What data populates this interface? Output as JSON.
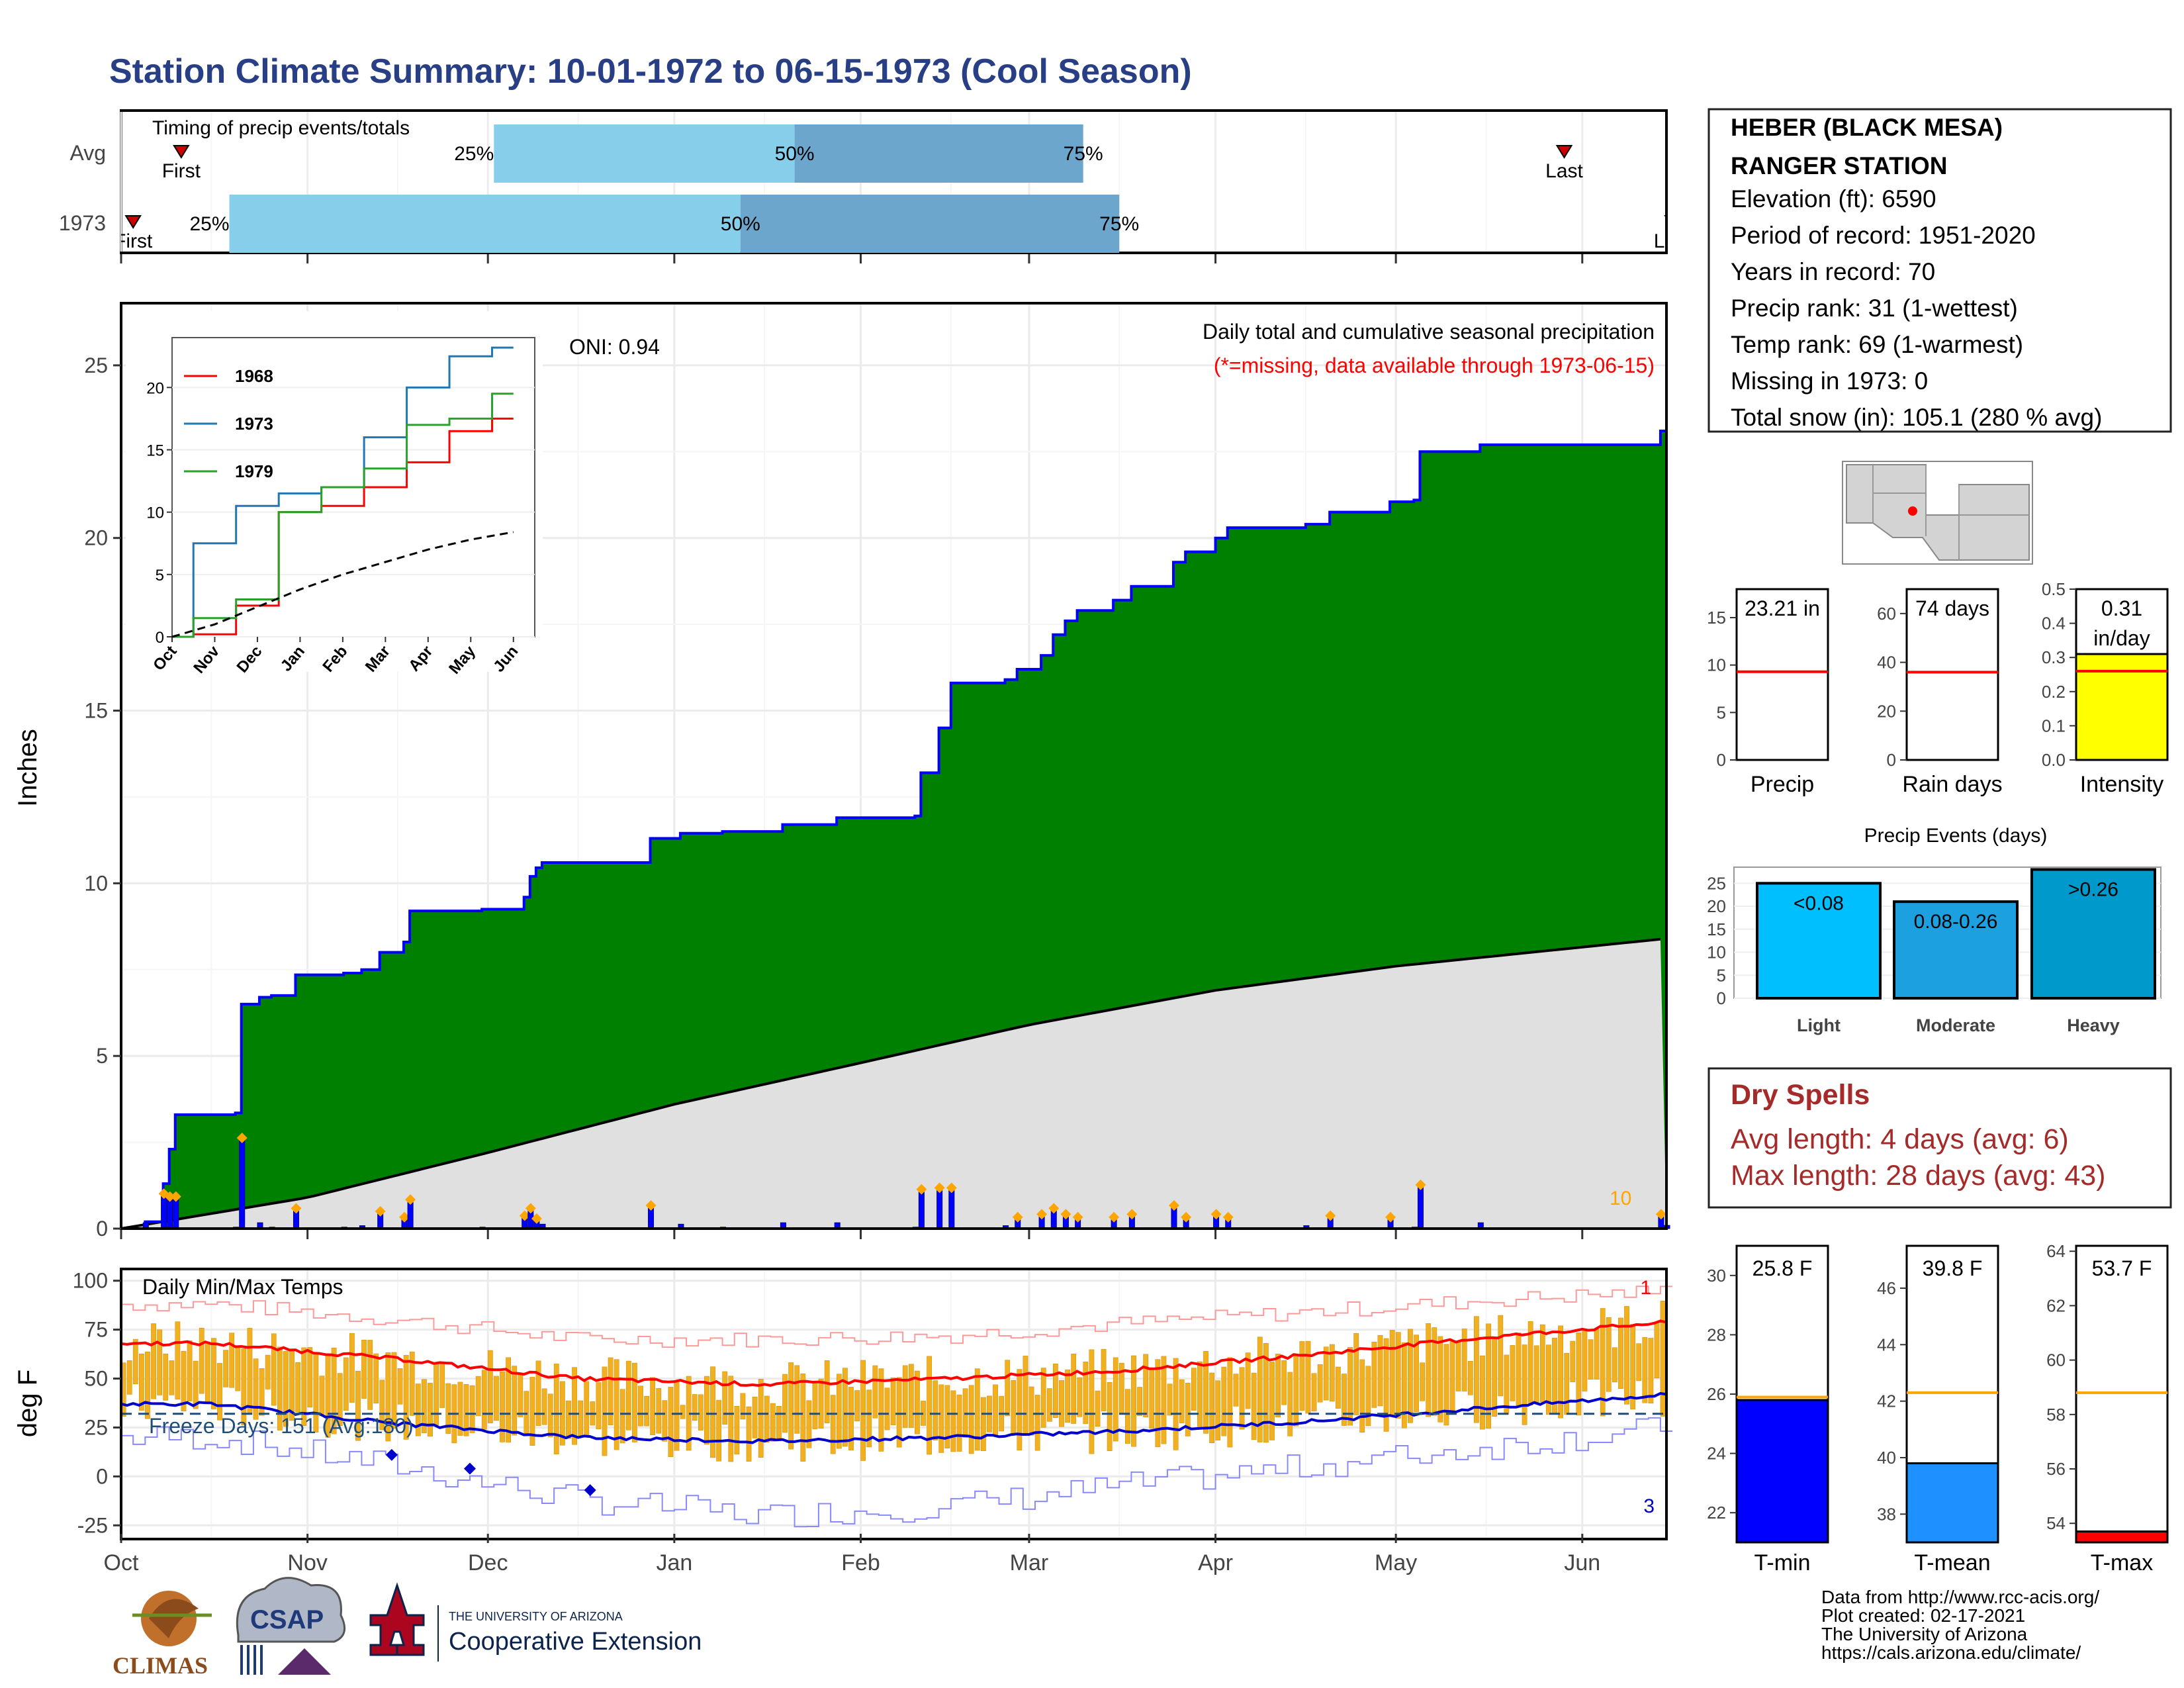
{
  "title": "Station Climate Summary: 10-01-1972 to 06-15-1973 (Cool Season)",
  "colors": {
    "title": "#283f86",
    "precip_fill": "#008000",
    "precip_line": "#0000ff",
    "normal_fill": "#e0e0e0",
    "timing_light": "#87ceeb",
    "timing_dark": "#6ca6cd",
    "temp_bar": "#f0b020",
    "max_line": "#ff0000",
    "min_line": "#0000cc",
    "dry_text": "#a52a2a"
  },
  "timing": {
    "title": "Timing of precip events/totals",
    "rows": [
      {
        "label": "Avg",
        "first_day": 10,
        "last_day": 240,
        "first": "First",
        "last": "Last",
        "q25": 62,
        "q50": 112,
        "q75": 160,
        "q25_label": "25%",
        "q50_label": "50%",
        "q75_label": "75%"
      },
      {
        "label": "1973",
        "first_day": 2,
        "last_day": 258,
        "first": "First",
        "last": "Last",
        "q25": 18,
        "q50": 103,
        "q75": 166,
        "q25_label": "25%",
        "q50_label": "50%",
        "q75_label": "75%"
      }
    ]
  },
  "station": {
    "lines": [
      "HEBER (BLACK MESA)",
      "RANGER STATION",
      "Elevation (ft): 6590",
      "Period of record: 1951-2020",
      "Years in record: 70",
      "Precip rank: 31 (1-wettest)",
      "Temp rank: 69 (1-warmest)",
      "Missing in 1973: 0",
      "Total snow (in): 105.1 (280 % avg)"
    ]
  },
  "precip_panel": {
    "label": "Daily total and cumulative seasonal precipitation",
    "missing_note": "(*=missing, data available through 1973-06-15)",
    "oni": "ONI: 0.94",
    "ylabel": "Inches",
    "yticks": [
      "0",
      "5",
      "10",
      "15",
      "20",
      "25"
    ],
    "corner_count": "10"
  },
  "inset": {
    "yticks": [
      "0",
      "5",
      "10",
      "15",
      "20"
    ],
    "xticks": [
      "Oct",
      "Nov",
      "Dec",
      "Jan",
      "Feb",
      "Mar",
      "Apr",
      "May",
      "Jun"
    ],
    "legend": [
      "1968",
      "1973",
      "1979"
    ]
  },
  "temp_panel": {
    "label": "Daily Min/Max Temps",
    "freeze": "Freeze Days: 151 (Avg:180)",
    "ylabel": "deg F",
    "yticks": [
      "100",
      "75",
      "50",
      "25",
      "0",
      "-25"
    ],
    "corner_top": "1",
    "corner_bottom": "3"
  },
  "months": [
    "Oct",
    "Nov",
    "Dec",
    "Jan",
    "Feb",
    "Mar",
    "Apr",
    "May",
    "Jun"
  ],
  "small_bars": [
    {
      "title": "23.21 in",
      "label": "Precip",
      "value": 23.21,
      "avg": 9.3,
      "ymax": 18,
      "ticks": [
        "0",
        "5",
        "10",
        "15"
      ],
      "fill": "#ffffff"
    },
    {
      "title": "74 days",
      "label": "Rain days",
      "value": 74,
      "avg": 36,
      "ymax": 70,
      "ticks": [
        "0",
        "20",
        "40",
        "60"
      ],
      "fill": "#ffffff"
    },
    {
      "title": "0.31 in/day",
      "label": "Intensity",
      "value": 0.31,
      "avg": 0.26,
      "ymax": 0.5,
      "ticks": [
        "0.0",
        "0.1",
        "0.2",
        "0.3",
        "0.4",
        "0.5"
      ],
      "fill": "#ffff00"
    }
  ],
  "events": {
    "title": "Precip Events (days)",
    "ticks": [
      "0",
      "5",
      "10",
      "15",
      "20",
      "25"
    ],
    "bars": [
      {
        "label": "<0.08",
        "category": "Light",
        "value": 25,
        "color": "#00bfff"
      },
      {
        "label": "0.08-0.26",
        "category": "Moderate",
        "value": 21,
        "color": "#1ca0e0"
      },
      {
        "label": ">0.26",
        "category": "Heavy",
        "value": 28,
        "color": "#0099cc"
      }
    ]
  },
  "dry_spells": {
    "title": "Dry Spells",
    "avg": "Avg length: 4 days (avg: 6)",
    "max": "Max length: 28 days (avg: 43)"
  },
  "temp_bars": [
    {
      "title": "25.8 F",
      "label": "T-min",
      "value": 25.8,
      "avg": 25.9,
      "ymin": 21,
      "ymax": 31,
      "ticks": [
        "22",
        "24",
        "26",
        "28",
        "30"
      ],
      "fill": "#0000ff"
    },
    {
      "title": "39.8 F",
      "label": "T-mean",
      "value": 39.8,
      "avg": 42.3,
      "ymin": 37,
      "ymax": 47.5,
      "ticks": [
        "38",
        "40",
        "42",
        "44",
        "46"
      ],
      "fill": "#1e90ff"
    },
    {
      "title": "53.7 F",
      "label": "T-max",
      "value": 53.7,
      "avg": 58.8,
      "ymin": 53.3,
      "ymax": 64.2,
      "ticks": [
        "54",
        "56",
        "58",
        "60",
        "62",
        "64"
      ],
      "fill": "#ff0000"
    }
  ],
  "footer": {
    "lines": [
      "Data from http://www.rcc-acis.org/",
      "Plot created: 02-17-2021",
      "The University of Arizona",
      "https://cals.arizona.edu/climate/"
    ]
  },
  "logos": {
    "climas": "CLIMAS",
    "csap": "CSAP",
    "ua_top": "THE UNIVERSITY OF ARIZONA",
    "ua_bottom": "Cooperative Extension"
  },
  "chart_data": [
    {
      "type": "area",
      "title": "Daily total and cumulative seasonal precipitation",
      "ylabel": "Inches",
      "ylim": [
        0,
        25
      ],
      "x_range": [
        "1972-10-01",
        "1973-06-15"
      ],
      "series": [
        {
          "name": "cumulative",
          "points": [
            [
              "1972-10-01",
              0.0
            ],
            [
              "1972-10-05",
              0.2
            ],
            [
              "1972-10-08",
              1.3
            ],
            [
              "1972-10-09",
              2.3
            ],
            [
              "1972-10-10",
              3.3
            ],
            [
              "1972-10-20",
              3.35
            ],
            [
              "1972-10-21",
              6.5
            ],
            [
              "1972-10-24",
              6.7
            ],
            [
              "1972-10-26",
              6.75
            ],
            [
              "1972-10-30",
              7.35
            ],
            [
              "1972-11-07",
              7.4
            ],
            [
              "1972-11-10",
              7.5
            ],
            [
              "1972-11-13",
              8.0
            ],
            [
              "1972-11-17",
              8.3
            ],
            [
              "1972-11-18",
              9.2
            ],
            [
              "1972-11-30",
              9.25
            ],
            [
              "1972-12-07",
              9.6
            ],
            [
              "1972-12-08",
              10.2
            ],
            [
              "1972-12-09",
              10.45
            ],
            [
              "1972-12-10",
              10.6
            ],
            [
              "1972-12-27",
              10.6
            ],
            [
              "1972-12-28",
              11.3
            ],
            [
              "1973-01-02",
              11.45
            ],
            [
              "1973-01-09",
              11.5
            ],
            [
              "1973-01-19",
              11.7
            ],
            [
              "1973-01-28",
              11.9
            ],
            [
              "1973-02-10",
              11.95
            ],
            [
              "1973-02-11",
              13.2
            ],
            [
              "1973-02-14",
              14.5
            ],
            [
              "1973-02-16",
              15.8
            ],
            [
              "1973-02-25",
              15.9
            ],
            [
              "1973-02-27",
              16.2
            ],
            [
              "1973-03-03",
              16.6
            ],
            [
              "1973-03-05",
              17.2
            ],
            [
              "1973-03-07",
              17.6
            ],
            [
              "1973-03-09",
              17.9
            ],
            [
              "1973-03-15",
              18.2
            ],
            [
              "1973-03-18",
              18.6
            ],
            [
              "1973-03-25",
              19.3
            ],
            [
              "1973-03-27",
              19.6
            ],
            [
              "1973-04-01",
              20.0
            ],
            [
              "1973-04-03",
              20.3
            ],
            [
              "1973-04-16",
              20.4
            ],
            [
              "1973-04-20",
              20.75
            ],
            [
              "1973-04-30",
              21.05
            ],
            [
              "1973-05-04",
              21.1
            ],
            [
              "1973-05-05",
              22.5
            ],
            [
              "1973-05-15",
              22.7
            ],
            [
              "1973-06-13",
              22.7
            ],
            [
              "1973-06-14",
              23.1
            ],
            [
              "1973-06-15",
              23.21
            ]
          ]
        },
        {
          "name": "average cumulative",
          "points": [
            [
              "1972-10-01",
              0.0
            ],
            [
              "1972-11-01",
              0.9
            ],
            [
              "1972-12-01",
              2.2
            ],
            [
              "1973-01-01",
              3.6
            ],
            [
              "1973-02-01",
              4.8
            ],
            [
              "1973-03-01",
              5.9
            ],
            [
              "1973-04-01",
              6.9
            ],
            [
              "1973-05-01",
              7.6
            ],
            [
              "1973-06-15",
              8.4
            ]
          ]
        }
      ]
    },
    {
      "type": "line",
      "title": "",
      "ylim": [
        0,
        24
      ],
      "x": [
        "Oct",
        "Nov",
        "Dec",
        "Jan",
        "Feb",
        "Mar",
        "Apr",
        "May",
        "Jun"
      ],
      "series": [
        {
          "name": "1968",
          "values": [
            0,
            0.2,
            2.5,
            10.0,
            10.5,
            12.0,
            14.0,
            16.5,
            17.5
          ]
        },
        {
          "name": "1973",
          "values": [
            0,
            7.5,
            10.5,
            11.5,
            12.0,
            16.0,
            20.0,
            22.5,
            23.2
          ]
        },
        {
          "name": "1979",
          "values": [
            0,
            1.5,
            3.0,
            10.0,
            12.0,
            13.5,
            17.0,
            17.5,
            19.5
          ]
        },
        {
          "values": [
            0,
            1.0,
            2.4,
            3.8,
            5.0,
            6.0,
            7.0,
            7.8,
            8.4
          ]
        }
      ]
    },
    {
      "type": "bar",
      "title": "Daily Min/Max Temps",
      "ylabel": "deg F",
      "ylim": [
        -30,
        100
      ],
      "x_range": [
        "1972-10-01",
        "1973-06-15"
      ],
      "series": [
        {
          "name": "avg max",
          "values_by_month": [
            68,
            60,
            50,
            47,
            50,
            54,
            62,
            71,
            79
          ]
        },
        {
          "name": "avg min",
          "values_by_month": [
            37,
            27,
            20,
            18,
            20,
            23,
            28,
            35,
            42
          ]
        },
        {
          "name": "record max",
          "values_by_month": [
            88,
            80,
            70,
            70,
            72,
            78,
            84,
            90,
            95
          ]
        },
        {
          "name": "record min",
          "values_by_month": [
            20,
            5,
            -12,
            -20,
            -15,
            -5,
            5,
            15,
            25
          ]
        }
      ],
      "freeze_line": 32
    },
    {
      "type": "bar",
      "title": "Precip Events (days)",
      "categories": [
        "Light",
        "Moderate",
        "Heavy"
      ],
      "values": [
        25,
        21,
        28
      ],
      "ylim": [
        0,
        28
      ]
    },
    {
      "type": "bar",
      "categories": [
        "Precip",
        "Rain days",
        "Intensity"
      ],
      "values": [
        23.21,
        74,
        0.31
      ],
      "averages": [
        9.3,
        36,
        0.26
      ]
    },
    {
      "type": "bar",
      "categories": [
        "T-min",
        "T-mean",
        "T-max"
      ],
      "values": [
        25.8,
        39.8,
        53.7
      ],
      "averages": [
        25.9,
        42.3,
        58.8
      ]
    }
  ]
}
